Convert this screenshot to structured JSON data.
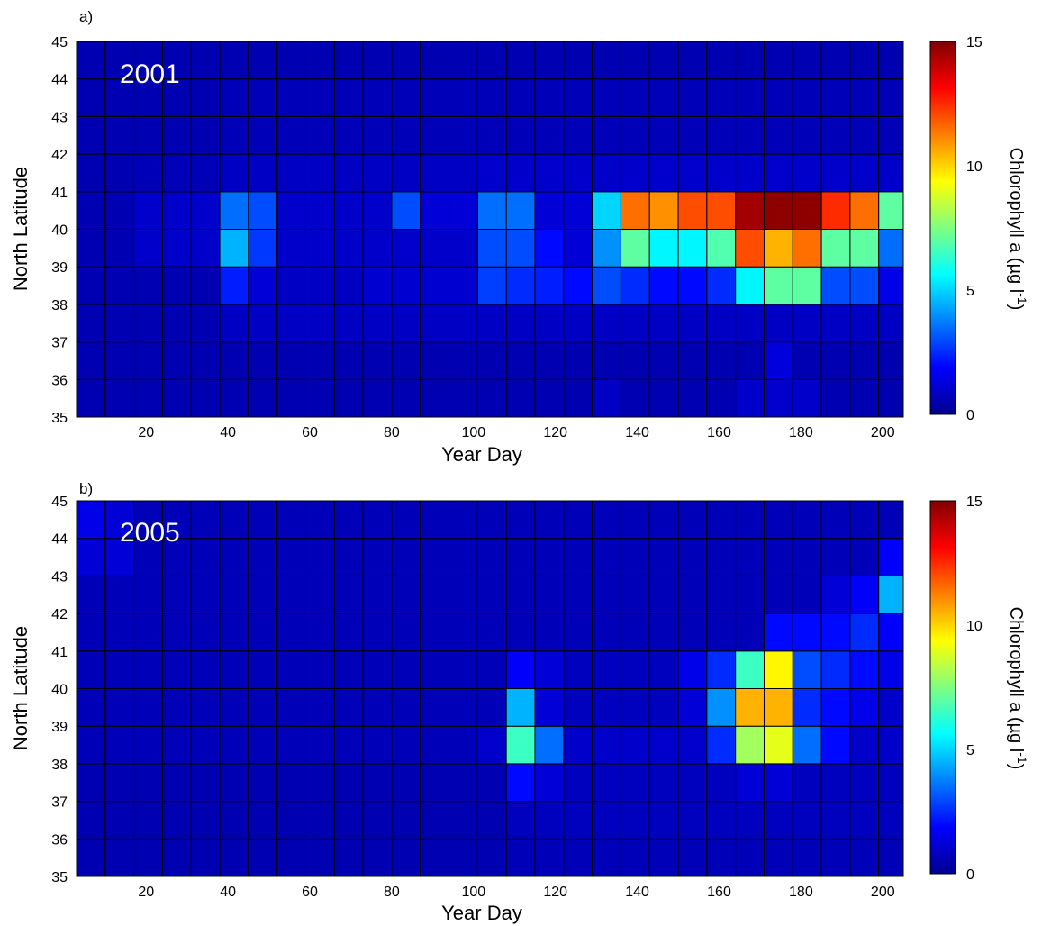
{
  "colorscale": {
    "name": "jet",
    "stops": [
      "#00008f",
      "#0000ff",
      "#0080ff",
      "#00ffff",
      "#80ff80",
      "#ffff00",
      "#ff8000",
      "#ff0000",
      "#800000"
    ]
  },
  "chart_data": [
    {
      "type": "heatmap",
      "panel_label": "a)",
      "annotation": "2001",
      "xlabel": "Year Day",
      "ylabel": "North Latitude",
      "colorbar_label": "Chlorophyll a (µg l",
      "colorbar_label_sup": "-1",
      "colorbar_label_end": ")",
      "colorbar_range": [
        0,
        15
      ],
      "colorbar_ticks": [
        "0",
        "5",
        "10",
        "15"
      ],
      "xlim": [
        3,
        205
      ],
      "ylim": [
        35,
        45
      ],
      "x_ticks": [
        "20",
        "40",
        "60",
        "80",
        "100",
        "120",
        "140",
        "160",
        "180",
        "200"
      ],
      "y_ticks": [
        "35",
        "36",
        "37",
        "38",
        "39",
        "40",
        "41",
        "42",
        "43",
        "44",
        "45"
      ],
      "x_bin_width_days": 7,
      "x_bin_start_days": [
        3,
        10,
        17,
        24,
        31,
        38,
        45,
        52,
        59,
        66,
        73,
        80,
        87,
        94,
        101,
        108,
        115,
        122,
        129,
        136,
        143,
        150,
        157,
        164,
        171,
        178,
        185,
        192,
        199
      ],
      "y_bin_lower_lat": [
        35,
        36,
        37,
        38,
        39,
        40,
        41,
        42,
        43,
        44
      ],
      "values": [
        [
          0.6,
          0.6,
          0.6,
          0.6,
          0.6,
          0.6,
          0.6,
          0.6,
          0.6,
          0.6,
          0.6,
          0.6,
          0.6,
          0.6,
          0.6,
          0.6,
          0.6,
          0.6,
          0.9,
          0.6,
          0.6,
          0.6,
          0.6,
          1.0,
          1.0,
          1.0,
          0.6,
          0.6,
          0.6
        ],
        [
          0.6,
          0.6,
          0.6,
          0.6,
          0.6,
          0.6,
          0.6,
          0.6,
          0.6,
          0.6,
          0.6,
          0.6,
          0.6,
          0.6,
          0.6,
          0.6,
          0.6,
          0.6,
          0.6,
          0.6,
          0.6,
          0.6,
          0.6,
          0.6,
          1.3,
          0.6,
          0.6,
          0.6,
          0.6
        ],
        [
          0.6,
          0.6,
          0.6,
          0.6,
          0.6,
          0.9,
          0.9,
          0.9,
          0.9,
          0.9,
          0.9,
          0.9,
          0.9,
          0.9,
          0.9,
          0.9,
          0.9,
          0.9,
          0.9,
          0.9,
          0.9,
          0.9,
          0.9,
          0.9,
          0.9,
          0.9,
          0.9,
          0.9,
          0.9
        ],
        [
          0.6,
          0.6,
          0.6,
          0.6,
          0.6,
          2.3,
          1.2,
          0.9,
          0.9,
          0.9,
          1.1,
          1.1,
          1.1,
          1.1,
          2.8,
          2.5,
          2.3,
          2.0,
          3.0,
          2.5,
          2.0,
          2.0,
          2.5,
          5.5,
          7.0,
          7.0,
          3.0,
          3.0,
          1.5
        ],
        [
          0.6,
          0.6,
          1.0,
          1.0,
          1.0,
          4.5,
          2.7,
          1.0,
          1.0,
          1.0,
          1.0,
          1.0,
          1.0,
          1.0,
          3.0,
          3.0,
          2.0,
          1.2,
          4.0,
          7.0,
          5.5,
          5.5,
          6.8,
          12.0,
          10.5,
          11.5,
          7.0,
          7.0,
          3.5
        ],
        [
          0.6,
          0.6,
          1.0,
          1.0,
          1.0,
          3.5,
          3.0,
          1.0,
          1.0,
          1.0,
          1.0,
          3.0,
          1.2,
          1.2,
          3.5,
          3.5,
          1.2,
          1.2,
          5.0,
          11.5,
          11.0,
          12.0,
          12.0,
          14.5,
          14.8,
          14.8,
          12.5,
          11.5,
          7.0
        ],
        [
          0.6,
          0.6,
          0.7,
          0.7,
          0.7,
          0.9,
          0.9,
          0.9,
          0.9,
          0.9,
          0.9,
          0.9,
          0.9,
          0.9,
          1.0,
          1.0,
          1.0,
          1.0,
          1.0,
          1.0,
          1.0,
          1.0,
          1.0,
          1.0,
          1.0,
          1.0,
          1.0,
          1.0,
          1.0
        ],
        [
          0.6,
          0.6,
          0.6,
          0.6,
          0.6,
          0.7,
          0.7,
          0.7,
          0.7,
          0.7,
          0.7,
          0.7,
          0.7,
          0.7,
          0.7,
          0.7,
          0.7,
          0.7,
          0.7,
          0.7,
          0.7,
          0.7,
          0.7,
          0.7,
          0.7,
          0.7,
          0.7,
          0.7,
          0.7
        ],
        [
          0.6,
          0.6,
          0.6,
          0.6,
          0.6,
          0.7,
          0.7,
          0.7,
          0.7,
          0.7,
          0.7,
          0.7,
          0.7,
          0.7,
          0.7,
          0.7,
          0.7,
          0.7,
          0.7,
          0.7,
          0.7,
          0.7,
          0.7,
          0.7,
          0.7,
          0.7,
          0.7,
          0.7,
          0.7
        ],
        [
          0.6,
          0.6,
          0.6,
          0.6,
          0.6,
          0.6,
          0.6,
          0.6,
          0.6,
          0.6,
          0.6,
          0.6,
          0.6,
          0.6,
          0.6,
          0.6,
          0.6,
          0.6,
          0.6,
          0.6,
          0.6,
          0.6,
          0.6,
          0.6,
          0.6,
          0.6,
          0.6,
          0.6,
          0.6
        ]
      ]
    },
    {
      "type": "heatmap",
      "panel_label": "b)",
      "annotation": "2005",
      "xlabel": "Year Day",
      "ylabel": "North Latitude",
      "colorbar_label": "Chlorophyll a (µg l",
      "colorbar_label_sup": "-1",
      "colorbar_label_end": ")",
      "colorbar_range": [
        0,
        15
      ],
      "colorbar_ticks": [
        "0",
        "5",
        "10",
        "15"
      ],
      "xlim": [
        3,
        205
      ],
      "ylim": [
        35,
        45
      ],
      "x_ticks": [
        "20",
        "40",
        "60",
        "80",
        "100",
        "120",
        "140",
        "160",
        "180",
        "200"
      ],
      "y_ticks": [
        "35",
        "36",
        "37",
        "38",
        "39",
        "40",
        "41",
        "42",
        "43",
        "44",
        "45"
      ],
      "x_bin_width_days": 7,
      "x_bin_start_days": [
        3,
        10,
        17,
        24,
        31,
        38,
        45,
        52,
        59,
        66,
        73,
        80,
        87,
        94,
        101,
        108,
        115,
        122,
        129,
        136,
        143,
        150,
        157,
        164,
        171,
        178,
        185,
        192,
        199
      ],
      "y_bin_lower_lat": [
        35,
        36,
        37,
        38,
        39,
        40,
        41,
        42,
        43,
        44
      ],
      "values": [
        [
          0.6,
          0.6,
          0.6,
          0.6,
          0.6,
          0.6,
          0.6,
          0.6,
          0.6,
          0.6,
          0.6,
          0.6,
          0.6,
          0.6,
          0.6,
          0.7,
          0.7,
          0.7,
          0.7,
          0.7,
          0.7,
          0.7,
          0.7,
          0.7,
          0.7,
          0.7,
          0.7,
          0.7,
          0.7
        ],
        [
          0.6,
          0.6,
          0.6,
          0.6,
          0.6,
          0.6,
          0.6,
          0.6,
          0.6,
          0.6,
          0.6,
          0.6,
          0.6,
          0.6,
          0.6,
          0.8,
          0.8,
          0.8,
          0.8,
          0.8,
          0.8,
          0.8,
          0.8,
          0.8,
          0.8,
          0.8,
          0.8,
          0.8,
          0.8
        ],
        [
          0.6,
          0.6,
          0.6,
          0.6,
          0.6,
          0.6,
          0.6,
          0.6,
          0.6,
          0.6,
          0.6,
          0.6,
          0.6,
          0.6,
          0.6,
          2.0,
          1.2,
          0.8,
          0.8,
          0.8,
          0.8,
          0.8,
          0.8,
          1.2,
          1.2,
          0.8,
          0.8,
          0.8,
          0.8
        ],
        [
          0.7,
          0.7,
          0.7,
          0.7,
          0.7,
          0.7,
          0.7,
          0.7,
          0.7,
          0.7,
          0.7,
          0.7,
          0.7,
          0.7,
          1.0,
          6.5,
          3.5,
          1.0,
          1.0,
          1.0,
          1.0,
          1.0,
          2.5,
          8.0,
          9.0,
          3.5,
          2.0,
          1.0,
          1.0
        ],
        [
          0.7,
          0.7,
          0.7,
          0.7,
          0.7,
          0.7,
          0.7,
          0.7,
          0.7,
          0.7,
          0.7,
          0.7,
          0.7,
          0.7,
          0.7,
          4.5,
          1.2,
          0.8,
          0.8,
          0.8,
          0.8,
          1.2,
          4.0,
          10.5,
          10.5,
          2.5,
          2.0,
          1.5,
          1.0
        ],
        [
          0.7,
          0.7,
          0.7,
          0.7,
          0.7,
          0.7,
          0.7,
          0.7,
          0.7,
          0.7,
          0.7,
          0.7,
          0.7,
          0.7,
          0.7,
          1.8,
          1.2,
          0.8,
          0.8,
          0.8,
          0.8,
          1.5,
          2.5,
          6.5,
          9.5,
          3.0,
          2.5,
          2.0,
          1.5
        ],
        [
          0.7,
          0.7,
          0.7,
          0.7,
          0.7,
          0.7,
          0.7,
          0.7,
          0.7,
          0.7,
          0.7,
          0.7,
          0.7,
          0.7,
          0.7,
          0.7,
          0.7,
          0.7,
          0.7,
          0.7,
          0.7,
          0.7,
          0.7,
          0.7,
          2.0,
          2.0,
          2.0,
          2.5,
          1.8
        ],
        [
          0.7,
          0.7,
          0.7,
          0.7,
          0.7,
          0.7,
          0.7,
          0.7,
          0.7,
          0.7,
          0.7,
          0.7,
          0.7,
          0.7,
          0.7,
          0.7,
          0.7,
          0.7,
          0.7,
          0.7,
          0.7,
          0.7,
          0.7,
          0.7,
          0.7,
          0.7,
          1.2,
          1.8,
          4.5
        ],
        [
          1.2,
          1.2,
          0.7,
          0.7,
          0.7,
          0.7,
          0.7,
          0.7,
          0.7,
          0.7,
          0.7,
          0.7,
          0.7,
          0.7,
          0.7,
          0.7,
          0.7,
          0.7,
          0.7,
          0.7,
          0.7,
          0.7,
          0.7,
          0.7,
          0.7,
          0.7,
          0.7,
          0.7,
          1.8
        ],
        [
          1.5,
          1.2,
          0.7,
          0.7,
          0.7,
          0.7,
          0.7,
          0.7,
          0.7,
          0.7,
          0.7,
          0.7,
          0.7,
          0.7,
          0.7,
          0.7,
          0.7,
          0.7,
          0.7,
          0.7,
          0.7,
          0.7,
          0.7,
          0.7,
          0.7,
          0.7,
          0.7,
          0.7,
          0.7
        ]
      ]
    }
  ]
}
